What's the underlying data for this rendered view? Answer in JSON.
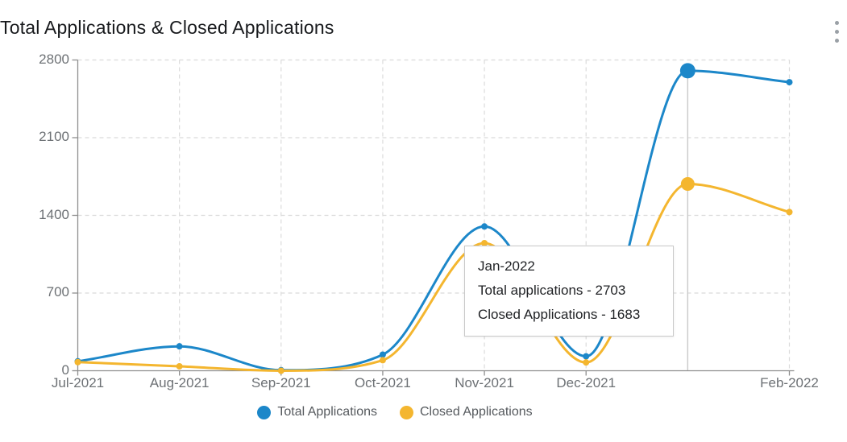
{
  "header": {
    "title": "Total Applications & Closed Applications",
    "menu_icon": "kebab-menu"
  },
  "chart_data": {
    "type": "line",
    "categories": [
      "Jul-2021",
      "Aug-2021",
      "Sep-2021",
      "Oct-2021",
      "Nov-2021",
      "Dec-2021",
      "Jan-2022",
      "Feb-2022"
    ],
    "series": [
      {
        "name": "Total Applications",
        "color": "#1c87c9",
        "values": [
          85,
          220,
          5,
          145,
          1300,
          130,
          2703,
          2600
        ]
      },
      {
        "name": "Closed Applications",
        "color": "#f4b62f",
        "values": [
          78,
          40,
          0,
          95,
          1150,
          75,
          1683,
          1430
        ]
      }
    ],
    "title": "Total Applications & Closed Applications",
    "xlabel": "",
    "ylabel": "",
    "ylim": [
      0,
      2800
    ],
    "y_ticks": [
      0,
      700,
      1400,
      2100,
      2800
    ],
    "x_axis_labels_visible": [
      "Jul-2021",
      "Aug-2021",
      "Sep-2021",
      "Oct-2021",
      "Nov-2021",
      "Dec-2021",
      "Feb-2022"
    ],
    "grid": "dashed",
    "legend_position": "bottom",
    "highlight_index": 6
  },
  "tooltip": {
    "title": "Jan-2022",
    "lines": [
      "Total applications - 2703",
      "Closed Applications - 1683"
    ]
  },
  "legend": {
    "items": [
      {
        "label": "Total Applications",
        "color": "#1c87c9"
      },
      {
        "label": "Closed Applications",
        "color": "#f4b62f"
      }
    ]
  },
  "colors": {
    "axis": "#8f8f8f",
    "gridline": "#dbdbdb",
    "crosshair": "#c9c9c9",
    "axis_label": "#6d7175",
    "title_text": "#17191c",
    "tooltip_text": "#1f2124",
    "menu_icon": "#9aa0a6"
  }
}
